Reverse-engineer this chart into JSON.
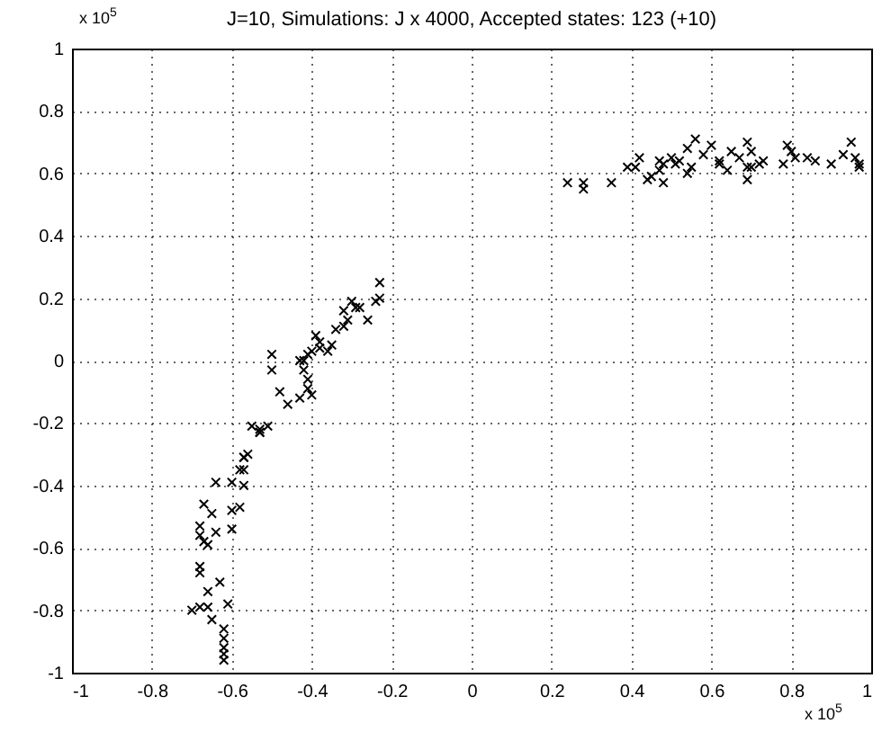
{
  "chart_data": {
    "type": "scatter",
    "title": "J=10, Simulations: J x 4000, Accepted states: 123 (+10)",
    "annotations": [
      "x 10$^{5}$",
      "x 10$^{5}$"
    ],
    "xlim": [
      -1,
      1
    ],
    "xticks": [
      -1,
      -0.8,
      -0.6,
      -0.4,
      -0.2,
      0,
      0.2,
      0.4,
      0.6,
      0.8,
      1
    ],
    "ylim": [
      -1,
      1
    ],
    "yticks": [
      -1,
      -0.8,
      -0.6,
      -0.4,
      -0.2,
      0,
      0.2,
      0.4,
      0.6,
      0.8,
      1
    ],
    "grid": true,
    "marker": "cross",
    "series": [
      {
        "color": "#000000",
        "x": [
          -0.53,
          -0.57,
          -0.58,
          -0.57,
          -0.64,
          -0.6,
          -0.57,
          -0.67,
          -0.65,
          -0.6,
          -0.58,
          -0.68,
          -0.68,
          -0.64,
          -0.6,
          -0.67,
          -0.66,
          -0.68,
          -0.68,
          -0.63,
          -0.66,
          -0.7,
          -0.68,
          -0.66,
          -0.61,
          -0.65,
          -0.62,
          -0.62,
          -0.62,
          -0.62,
          -0.62,
          -0.23,
          -0.23,
          -0.24,
          -0.3,
          -0.29,
          -0.28,
          -0.32,
          -0.31,
          -0.32,
          -0.34,
          -0.26,
          -0.35,
          -0.39,
          -0.38,
          -0.38,
          -0.36,
          -0.4,
          -0.41,
          -0.42,
          -0.43,
          -0.5,
          -0.5,
          -0.42,
          -0.41,
          -0.41,
          -0.4,
          -0.43,
          -0.48,
          -0.46,
          -0.51,
          -0.53,
          -0.55,
          -0.53,
          -0.56,
          -0.57,
          0.24,
          0.28,
          0.28,
          0.35,
          0.39,
          0.41,
          0.42,
          0.44,
          0.45,
          0.48,
          0.47,
          0.47,
          0.48,
          0.5,
          0.51,
          0.52,
          0.54,
          0.55,
          0.54,
          0.56,
          0.58,
          0.6,
          0.62,
          0.62,
          0.64,
          0.65,
          0.67,
          0.69,
          0.69,
          0.7,
          0.69,
          0.7,
          0.72,
          0.73,
          0.78,
          0.79,
          0.8,
          0.81,
          0.84,
          0.86,
          0.9,
          0.93,
          0.95,
          0.96,
          0.97,
          0.97
        ],
        "values": [
          -0.23,
          -0.31,
          -0.35,
          -0.35,
          -0.39,
          -0.39,
          -0.4,
          -0.46,
          -0.49,
          -0.48,
          -0.47,
          -0.53,
          -0.56,
          -0.55,
          -0.54,
          -0.58,
          -0.59,
          -0.66,
          -0.68,
          -0.71,
          -0.74,
          -0.8,
          -0.79,
          -0.79,
          -0.78,
          -0.83,
          -0.86,
          -0.89,
          -0.92,
          -0.94,
          -0.96,
          0.25,
          0.2,
          0.19,
          0.19,
          0.17,
          0.17,
          0.16,
          0.13,
          0.11,
          0.1,
          0.13,
          0.05,
          0.08,
          0.06,
          0.04,
          0.03,
          0.03,
          0.02,
          0,
          0,
          0.02,
          -0.03,
          -0.03,
          -0.06,
          -0.09,
          -0.11,
          -0.12,
          -0.1,
          -0.14,
          -0.21,
          -0.22,
          -0.21,
          -0.23,
          -0.3,
          -0.31,
          0.57,
          0.57,
          0.55,
          0.57,
          0.62,
          0.62,
          0.65,
          0.58,
          0.59,
          0.57,
          0.61,
          0.64,
          0.63,
          0.65,
          0.63,
          0.64,
          0.6,
          0.62,
          0.68,
          0.71,
          0.66,
          0.69,
          0.64,
          0.63,
          0.61,
          0.67,
          0.65,
          0.58,
          0.7,
          0.67,
          0.62,
          0.62,
          0.63,
          0.64,
          0.63,
          0.69,
          0.67,
          0.65,
          0.65,
          0.64,
          0.63,
          0.66,
          0.7,
          0.65,
          0.63,
          0.62
        ]
      }
    ]
  }
}
